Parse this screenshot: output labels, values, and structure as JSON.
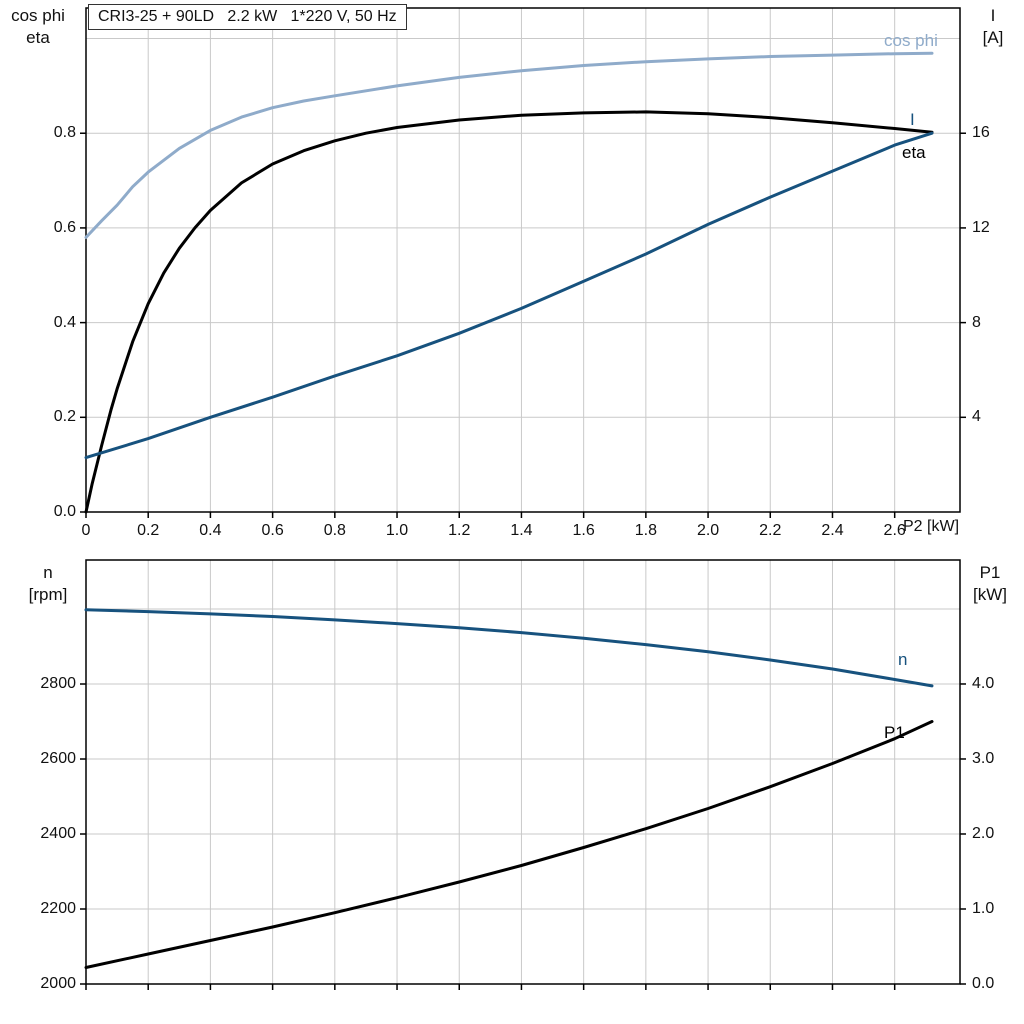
{
  "title_box": {
    "text": "CRI3-25 + 90LD   2.2 kW   1*220 V, 50 Hz"
  },
  "colors": {
    "dark_blue": "#17527e",
    "light_blue": "#8fabca",
    "black": "#000000",
    "grid": "#c9c9c9",
    "axis": "#000000"
  },
  "top_chart": {
    "y_left_title_line1": "cos phi",
    "y_left_title_line2": "eta",
    "y_right_title_line1": "I",
    "y_right_title_line2": "[A]",
    "x_axis_label": "P2 [kW]",
    "curve_labels": {
      "cos_phi": "cos phi",
      "current": "I",
      "eta": "eta"
    }
  },
  "bottom_chart": {
    "y_left_title_line1": "n",
    "y_left_title_line2": "[rpm]",
    "y_right_title_line1": "P1",
    "y_right_title_line2": "[kW]",
    "curve_labels": {
      "n": "n",
      "p1": "P1"
    }
  },
  "chart_data": [
    {
      "id": "motor-electrical",
      "type": "line",
      "title": "CRI3-25 + 90LD  2.2 kW  1*220 V, 50 Hz",
      "xlabel": "P2 [kW]",
      "x_range": [
        0,
        2.81
      ],
      "x_ticks": [
        0,
        0.2,
        0.4,
        0.6,
        0.8,
        1.0,
        1.2,
        1.4,
        1.6,
        1.8,
        2.0,
        2.2,
        2.4,
        2.6
      ],
      "x_tick_labels": [
        "0",
        "0.2",
        "0.4",
        "0.6",
        "0.8",
        "1.0",
        "1.2",
        "1.4",
        "1.6",
        "1.8",
        "2.0",
        "2.2",
        "2.4",
        "2.6"
      ],
      "grid": true,
      "legend_position": "curve-end-labels",
      "y_left": {
        "label": "cos phi / eta",
        "range": [
          0,
          1.0645
        ],
        "ticks": [
          0.0,
          0.2,
          0.4,
          0.6,
          0.8
        ],
        "tick_labels": [
          "0.0",
          "0.2",
          "0.4",
          "0.6",
          "0.8"
        ],
        "grid_extra": [
          1.0
        ]
      },
      "y_right": {
        "label": "I [A]",
        "range": [
          0,
          21.29
        ],
        "ticks": [
          4,
          8,
          12,
          16
        ],
        "tick_labels": [
          "4",
          "8",
          "12",
          "16"
        ],
        "grid_extra": []
      },
      "series": [
        {
          "name": "cos phi",
          "axis": "left",
          "color_key": "light_blue",
          "x": [
            0,
            0.05,
            0.1,
            0.15,
            0.2,
            0.3,
            0.4,
            0.5,
            0.6,
            0.7,
            0.8,
            1.0,
            1.2,
            1.4,
            1.6,
            1.8,
            2.0,
            2.2,
            2.4,
            2.6,
            2.72
          ],
          "y": [
            0.58,
            0.615,
            0.648,
            0.687,
            0.718,
            0.768,
            0.806,
            0.834,
            0.854,
            0.868,
            0.879,
            0.9,
            0.918,
            0.932,
            0.943,
            0.951,
            0.957,
            0.962,
            0.965,
            0.968,
            0.969
          ]
        },
        {
          "name": "eta",
          "axis": "left",
          "color_key": "black",
          "x": [
            0,
            0.02,
            0.05,
            0.08,
            0.1,
            0.15,
            0.2,
            0.25,
            0.3,
            0.35,
            0.4,
            0.5,
            0.6,
            0.7,
            0.8,
            0.9,
            1.0,
            1.2,
            1.4,
            1.6,
            1.8,
            2.0,
            2.2,
            2.4,
            2.6,
            2.72
          ],
          "y": [
            0,
            0.06,
            0.14,
            0.215,
            0.26,
            0.36,
            0.44,
            0.505,
            0.557,
            0.6,
            0.637,
            0.695,
            0.735,
            0.763,
            0.784,
            0.8,
            0.812,
            0.828,
            0.838,
            0.843,
            0.845,
            0.841,
            0.833,
            0.822,
            0.81,
            0.802
          ]
        },
        {
          "name": "I",
          "axis": "right",
          "color_key": "dark_blue",
          "x": [
            0,
            0.2,
            0.4,
            0.6,
            0.8,
            1.0,
            1.2,
            1.4,
            1.6,
            1.8,
            2.0,
            2.2,
            2.4,
            2.6,
            2.72
          ],
          "y": [
            2.3,
            3.1,
            4.0,
            4.85,
            5.75,
            6.6,
            7.55,
            8.6,
            9.75,
            10.9,
            12.15,
            13.3,
            14.4,
            15.5,
            16.0
          ]
        }
      ]
    },
    {
      "id": "motor-speed-power",
      "type": "line",
      "title": "",
      "xlabel": "",
      "x_range": [
        0,
        2.81
      ],
      "x_ticks": [
        0,
        0.2,
        0.4,
        0.6,
        0.8,
        1.0,
        1.2,
        1.4,
        1.6,
        1.8,
        2.0,
        2.2,
        2.4,
        2.6
      ],
      "x_tick_labels": [],
      "grid": true,
      "legend_position": "curve-end-labels",
      "y_left": {
        "label": "n [rpm]",
        "range": [
          2000,
          3130.7
        ],
        "ticks": [
          2000,
          2200,
          2400,
          2600,
          2800
        ],
        "tick_labels": [
          "2000",
          "2200",
          "2400",
          "2600",
          "2800"
        ],
        "grid_extra": [
          3000
        ]
      },
      "y_right": {
        "label": "P1 [kW]",
        "range": [
          0,
          5.653
        ],
        "ticks": [
          0.0,
          1.0,
          2.0,
          3.0,
          4.0
        ],
        "tick_labels": [
          "0.0",
          "1.0",
          "2.0",
          "3.0",
          "4.0"
        ],
        "grid_extra": []
      },
      "series": [
        {
          "name": "n",
          "axis": "left",
          "color_key": "dark_blue",
          "x": [
            0,
            0.2,
            0.4,
            0.6,
            0.8,
            1.0,
            1.2,
            1.4,
            1.6,
            1.8,
            2.0,
            2.2,
            2.4,
            2.6,
            2.72
          ],
          "y": [
            2998,
            2993,
            2987,
            2980,
            2971,
            2961,
            2950,
            2937,
            2922,
            2905,
            2886,
            2864,
            2840,
            2812,
            2795
          ]
        },
        {
          "name": "P1",
          "axis": "right",
          "color_key": "black",
          "x": [
            0,
            0.2,
            0.4,
            0.6,
            0.8,
            1.0,
            1.2,
            1.4,
            1.6,
            1.8,
            2.0,
            2.2,
            2.4,
            2.6,
            2.72
          ],
          "y": [
            0.22,
            0.4,
            0.58,
            0.76,
            0.95,
            1.15,
            1.36,
            1.58,
            1.82,
            2.07,
            2.34,
            2.63,
            2.94,
            3.27,
            3.5
          ]
        }
      ]
    }
  ]
}
